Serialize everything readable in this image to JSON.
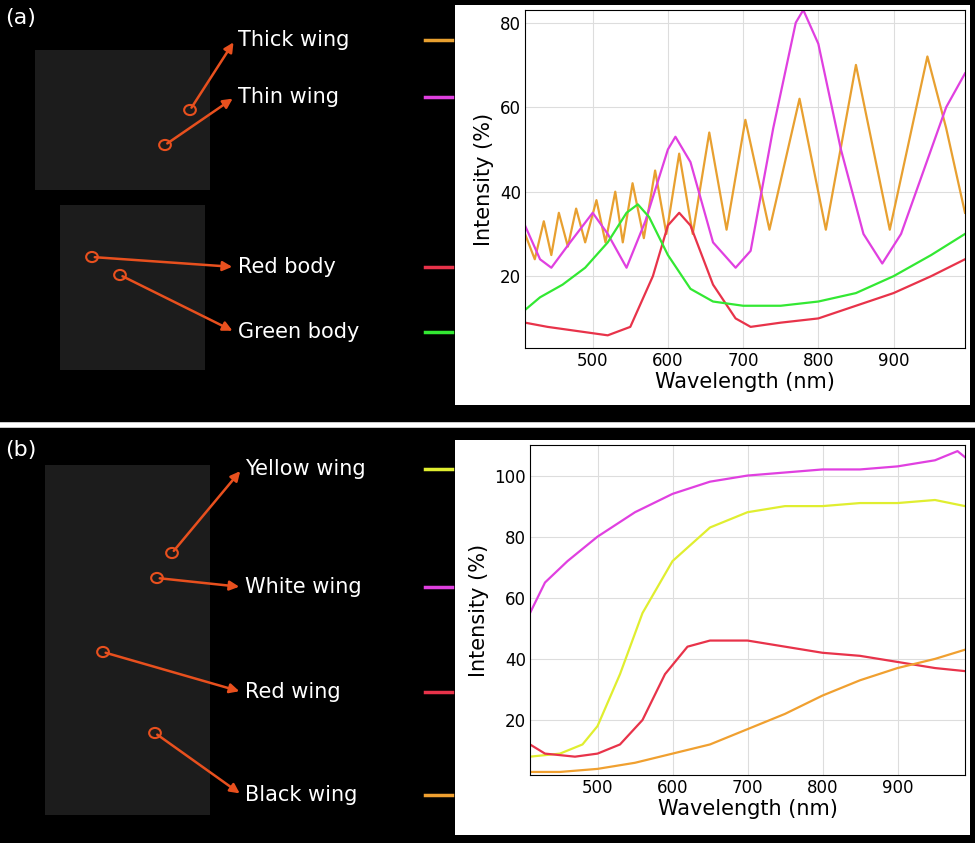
{
  "chart_data": [
    {
      "type": "line",
      "title": "(a)",
      "x_label": "Wavelength (nm)",
      "y_label": "Intensity (%)",
      "xlim": [
        410,
        995
      ],
      "ylim": [
        3,
        83
      ],
      "xticks": [
        500,
        600,
        700,
        800,
        900
      ],
      "yticks": [
        20,
        40,
        60,
        80
      ],
      "grid": true,
      "series": [
        {
          "name": "Thick wing",
          "color": "#e8a030",
          "x": [
            410,
            423,
            435,
            445,
            455,
            467,
            478,
            490,
            505,
            517,
            530,
            540,
            553,
            568,
            583,
            598,
            615,
            633,
            655,
            678,
            703,
            735,
            775,
            810,
            850,
            895,
            945,
            970,
            995
          ],
          "values": [
            30,
            24,
            33,
            25,
            35,
            27,
            36,
            28,
            38,
            28,
            40,
            28,
            42,
            29,
            45,
            30,
            49,
            30,
            54,
            31,
            57,
            31,
            62,
            31,
            70,
            31,
            72,
            55,
            35
          ]
        },
        {
          "name": "Thin wing",
          "color": "#e040e0",
          "x": [
            410,
            430,
            445,
            470,
            500,
            520,
            545,
            570,
            600,
            610,
            630,
            660,
            690,
            710,
            740,
            770,
            780,
            800,
            830,
            860,
            885,
            910,
            940,
            970,
            995
          ],
          "values": [
            32,
            24,
            22,
            28,
            35,
            30,
            22,
            33,
            50,
            53,
            47,
            28,
            22,
            26,
            55,
            80,
            83,
            75,
            50,
            30,
            23,
            30,
            45,
            60,
            68
          ]
        },
        {
          "name": "Red body",
          "color": "#e8334a",
          "x": [
            410,
            440,
            480,
            520,
            550,
            580,
            600,
            615,
            630,
            660,
            690,
            710,
            750,
            800,
            850,
            900,
            950,
            995
          ],
          "values": [
            9,
            8,
            7,
            6,
            8,
            20,
            32,
            35,
            32,
            18,
            10,
            8,
            9,
            10,
            13,
            16,
            20,
            24
          ]
        },
        {
          "name": "Green body",
          "color": "#33e833",
          "x": [
            410,
            430,
            460,
            490,
            520,
            545,
            560,
            575,
            600,
            630,
            660,
            700,
            750,
            800,
            850,
            900,
            950,
            995
          ],
          "values": [
            12,
            15,
            18,
            22,
            28,
            35,
            37,
            34,
            25,
            17,
            14,
            13,
            13,
            14,
            16,
            20,
            25,
            30
          ]
        }
      ]
    },
    {
      "type": "line",
      "title": "(b)",
      "x_label": "Wavelength (nm)",
      "y_label": "Intensity (%)",
      "xlim": [
        410,
        990
      ],
      "ylim": [
        2,
        110
      ],
      "xticks": [
        500,
        600,
        700,
        800,
        900
      ],
      "yticks": [
        20,
        40,
        60,
        80,
        100
      ],
      "grid": true,
      "series": [
        {
          "name": "Yellow wing",
          "color": "#e0ee30",
          "x": [
            410,
            450,
            480,
            500,
            530,
            560,
            600,
            650,
            700,
            750,
            800,
            850,
            900,
            950,
            990
          ],
          "values": [
            8,
            9,
            12,
            18,
            35,
            55,
            72,
            83,
            88,
            90,
            90,
            91,
            91,
            92,
            90
          ]
        },
        {
          "name": "White wing",
          "color": "#e040e0",
          "x": [
            410,
            430,
            460,
            500,
            550,
            600,
            650,
            700,
            750,
            800,
            850,
            900,
            950,
            980,
            990
          ],
          "values": [
            55,
            65,
            72,
            80,
            88,
            94,
            98,
            100,
            101,
            102,
            102,
            103,
            105,
            108,
            106
          ]
        },
        {
          "name": "Red wing",
          "color": "#e8334a",
          "x": [
            410,
            430,
            470,
            500,
            530,
            560,
            590,
            620,
            650,
            700,
            750,
            800,
            850,
            900,
            950,
            990
          ],
          "values": [
            12,
            9,
            8,
            9,
            12,
            20,
            35,
            44,
            46,
            46,
            44,
            42,
            41,
            39,
            37,
            36
          ]
        },
        {
          "name": "Black wing",
          "color": "#f0a030",
          "x": [
            410,
            450,
            500,
            550,
            600,
            650,
            700,
            750,
            800,
            850,
            900,
            950,
            990
          ],
          "values": [
            3,
            3,
            4,
            6,
            9,
            12,
            17,
            22,
            28,
            33,
            37,
            40,
            43
          ]
        }
      ]
    }
  ]
}
